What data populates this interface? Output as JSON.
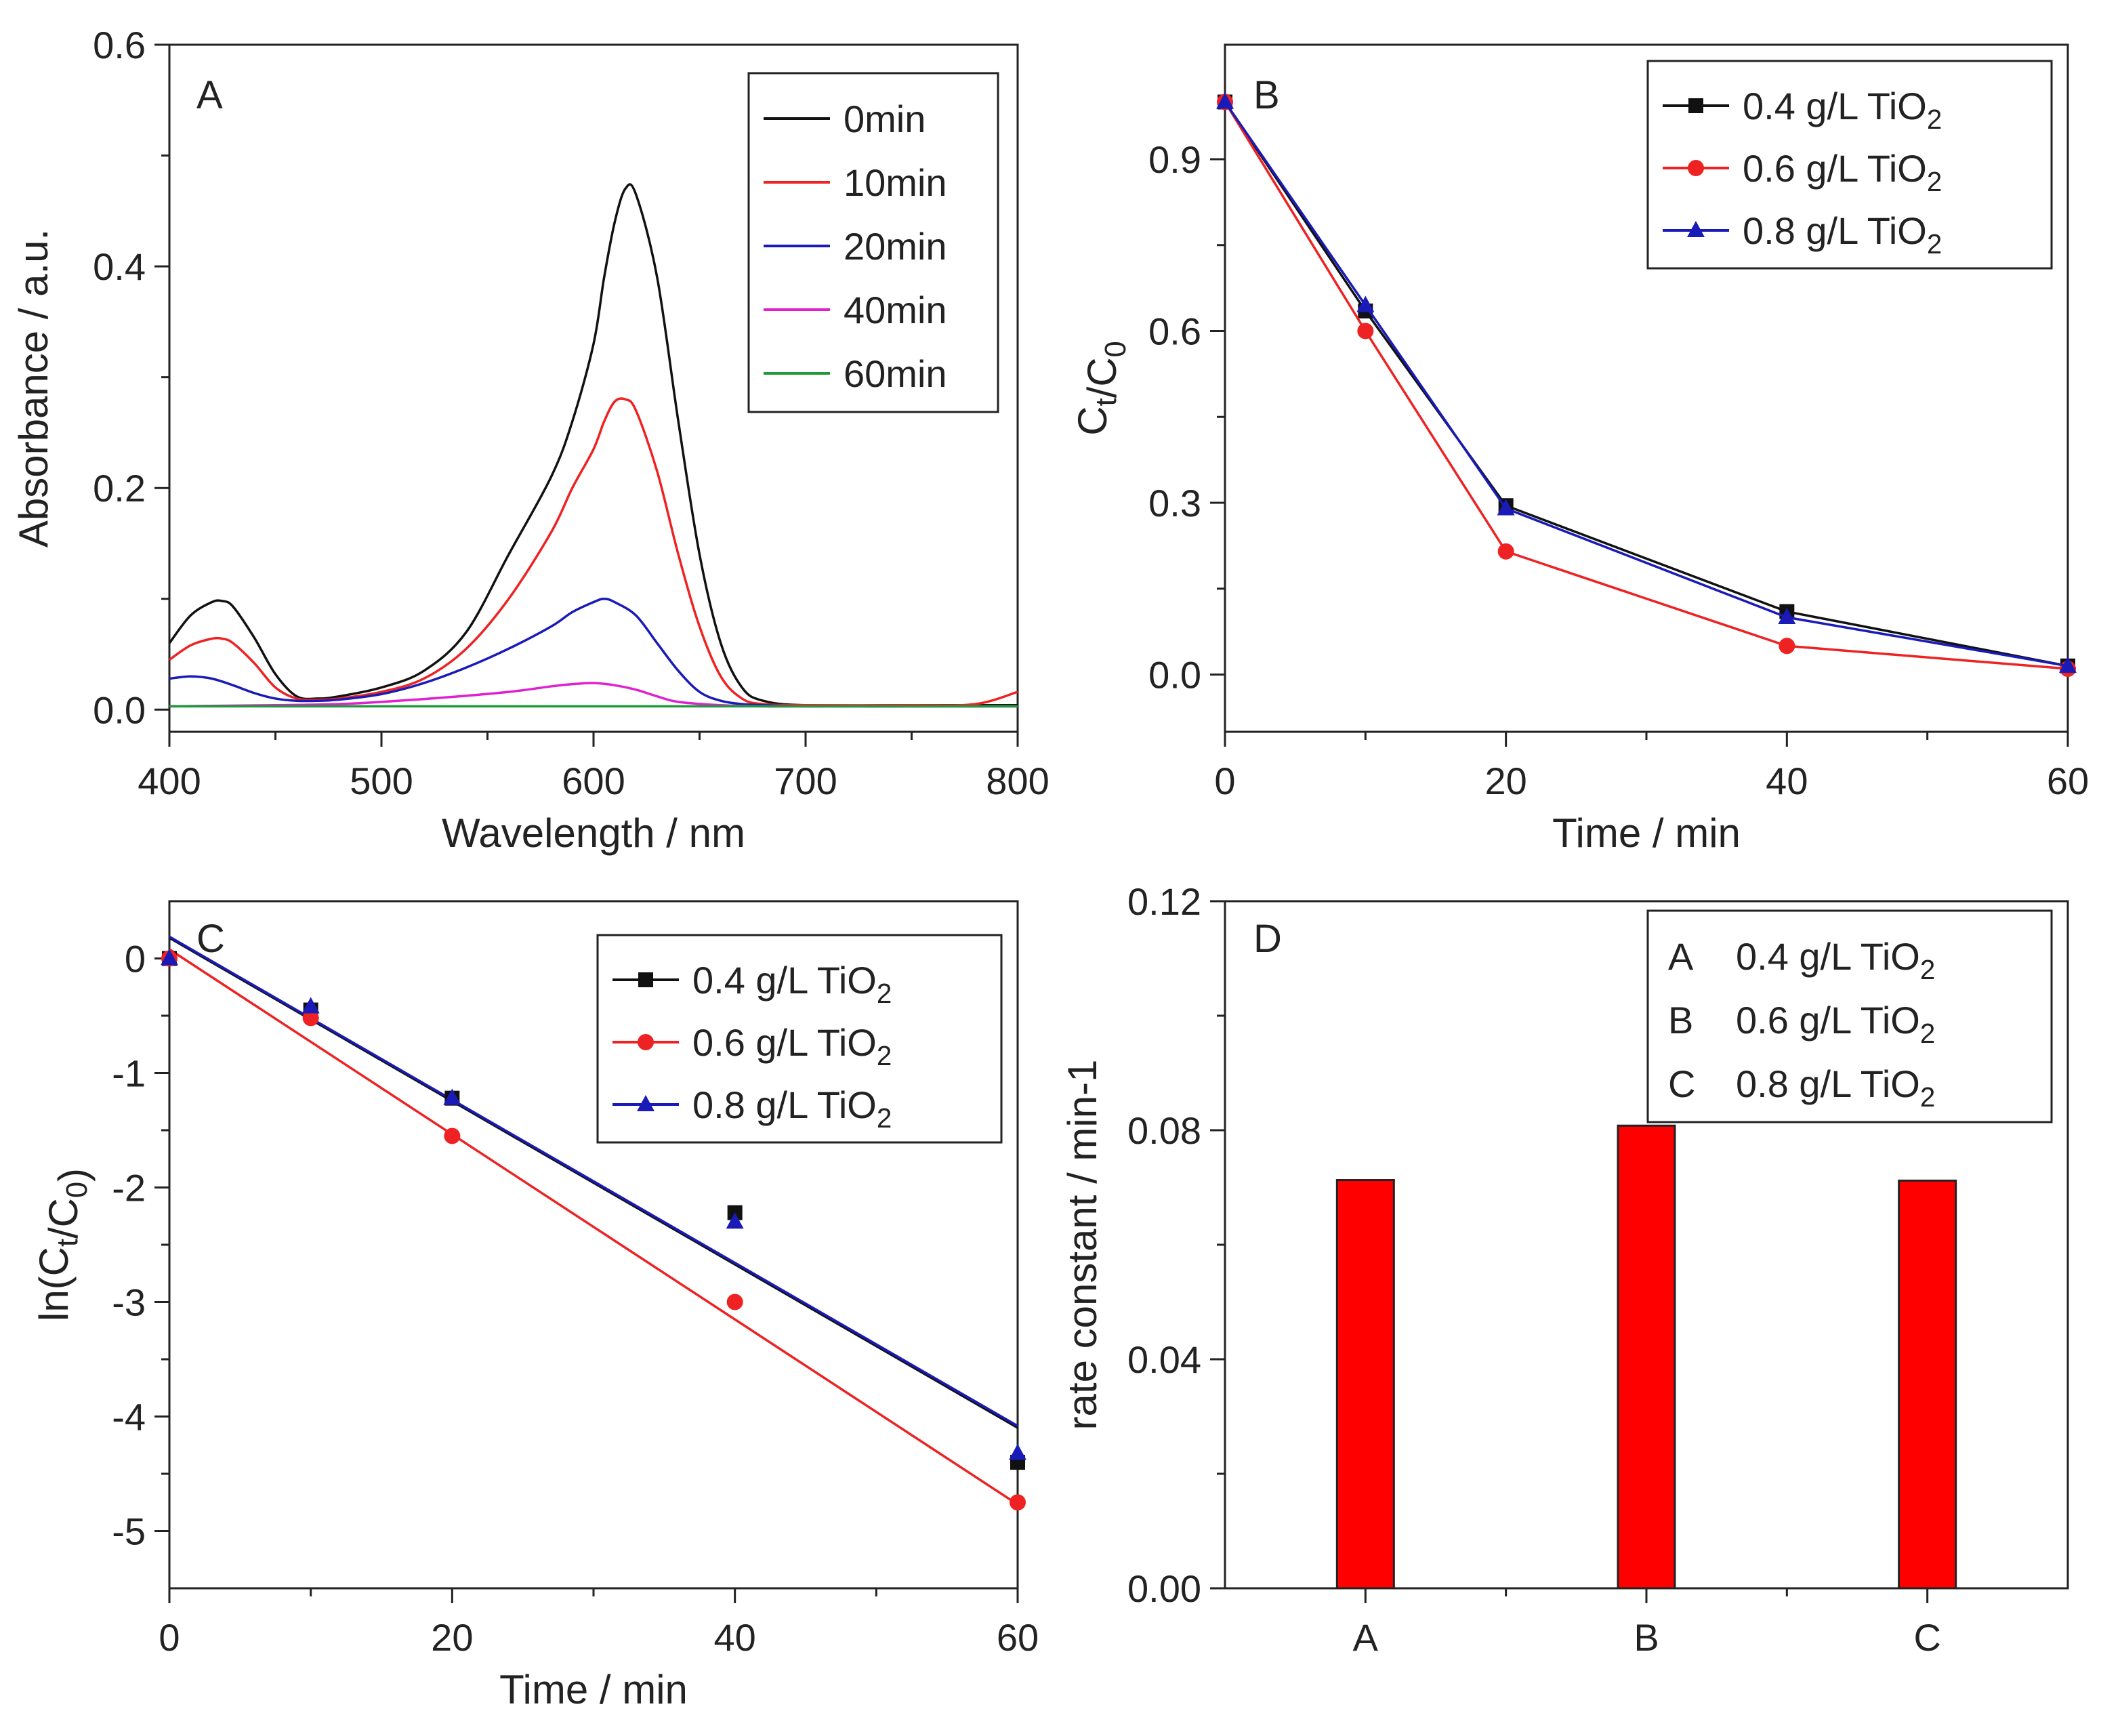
{
  "colors": {
    "black": "#111111",
    "red": "#ee2222",
    "blue": "#1a1ab8",
    "magenta": "#e020d0",
    "green": "#1f9a3a",
    "bar": "#ff0000"
  },
  "chart_data": [
    {
      "panel": "A",
      "type": "line",
      "title": "",
      "xlabel": "Wavelength / nm",
      "ylabel": "Absorbance / a.u.",
      "xlim": [
        400,
        800
      ],
      "ylim": [
        -0.02,
        0.6
      ],
      "xticks": [
        400,
        500,
        600,
        700,
        800
      ],
      "xtick_labels": [
        "400",
        "500",
        "600",
        "700",
        "800"
      ],
      "yticks": [
        0.0,
        0.2,
        0.4,
        0.6
      ],
      "ytick_labels": [
        "0.0",
        "0.2",
        "0.4",
        "0.6"
      ],
      "legend": "top-right",
      "series": [
        {
          "name": "0min",
          "color": "#111111",
          "x": [
            400,
            410,
            420,
            425,
            430,
            440,
            450,
            460,
            470,
            480,
            500,
            520,
            540,
            560,
            580,
            590,
            600,
            605,
            610,
            615,
            620,
            630,
            640,
            650,
            660,
            670,
            680,
            700,
            750,
            800
          ],
          "y": [
            0.06,
            0.085,
            0.097,
            0.098,
            0.093,
            0.065,
            0.032,
            0.012,
            0.01,
            0.012,
            0.02,
            0.035,
            0.07,
            0.14,
            0.21,
            0.26,
            0.33,
            0.39,
            0.44,
            0.47,
            0.465,
            0.39,
            0.26,
            0.14,
            0.06,
            0.02,
            0.008,
            0.004,
            0.004,
            0.004
          ]
        },
        {
          "name": "10min",
          "color": "#ee2222",
          "x": [
            400,
            410,
            420,
            425,
            430,
            440,
            450,
            460,
            470,
            480,
            500,
            520,
            540,
            560,
            580,
            590,
            600,
            605,
            610,
            615,
            620,
            630,
            640,
            650,
            660,
            670,
            680,
            700,
            750,
            780,
            800
          ],
          "y": [
            0.045,
            0.058,
            0.064,
            0.064,
            0.06,
            0.042,
            0.02,
            0.01,
            0.009,
            0.01,
            0.016,
            0.028,
            0.055,
            0.1,
            0.16,
            0.2,
            0.235,
            0.26,
            0.278,
            0.28,
            0.27,
            0.215,
            0.14,
            0.075,
            0.03,
            0.01,
            0.005,
            0.004,
            0.004,
            0.005,
            0.016
          ]
        },
        {
          "name": "20min",
          "color": "#1a1ab8",
          "x": [
            400,
            410,
            420,
            430,
            440,
            450,
            460,
            470,
            480,
            500,
            520,
            540,
            560,
            580,
            590,
            600,
            605,
            610,
            620,
            630,
            640,
            650,
            660,
            670,
            680,
            700,
            750,
            800
          ],
          "y": [
            0.028,
            0.03,
            0.028,
            0.022,
            0.015,
            0.01,
            0.008,
            0.008,
            0.009,
            0.014,
            0.024,
            0.038,
            0.055,
            0.075,
            0.088,
            0.097,
            0.1,
            0.097,
            0.085,
            0.06,
            0.035,
            0.016,
            0.008,
            0.005,
            0.004,
            0.003,
            0.003,
            0.003
          ]
        },
        {
          "name": "40min",
          "color": "#e020d0",
          "x": [
            400,
            450,
            480,
            500,
            530,
            560,
            580,
            590,
            600,
            610,
            620,
            630,
            640,
            660,
            680,
            700,
            800
          ],
          "y": [
            0.003,
            0.004,
            0.005,
            0.007,
            0.011,
            0.016,
            0.021,
            0.023,
            0.024,
            0.022,
            0.018,
            0.012,
            0.007,
            0.004,
            0.003,
            0.003,
            0.003
          ]
        },
        {
          "name": "60min",
          "color": "#1f9a3a",
          "x": [
            400,
            800
          ],
          "y": [
            0.003,
            0.003
          ]
        }
      ]
    },
    {
      "panel": "B",
      "type": "line",
      "title": "",
      "xlabel": "Time / min",
      "ylabel": "Ct/C0",
      "xlim": [
        0,
        60
      ],
      "ylim": [
        -0.1,
        1.1
      ],
      "xticks": [
        0,
        20,
        40,
        60
      ],
      "xtick_labels": [
        "0",
        "20",
        "40",
        "60"
      ],
      "yticks": [
        0.0,
        0.3,
        0.6,
        0.9
      ],
      "ytick_labels": [
        "0.0",
        "0.3",
        "0.6",
        "0.9"
      ],
      "legend": "top-right",
      "series": [
        {
          "name": "0.4 g/L TiO2",
          "color": "#111111",
          "marker": "square",
          "x": [
            0,
            10,
            20,
            40,
            60
          ],
          "y": [
            1.0,
            0.635,
            0.295,
            0.11,
            0.015
          ]
        },
        {
          "name": "0.6 g/L TiO2",
          "color": "#ee2222",
          "marker": "circle",
          "x": [
            0,
            10,
            20,
            40,
            60
          ],
          "y": [
            1.0,
            0.6,
            0.215,
            0.05,
            0.01
          ]
        },
        {
          "name": "0.8 g/L TiO2",
          "color": "#1a1ab8",
          "marker": "triangle",
          "x": [
            0,
            10,
            20,
            40,
            60
          ],
          "y": [
            1.0,
            0.645,
            0.29,
            0.1,
            0.015
          ]
        }
      ]
    },
    {
      "panel": "C",
      "type": "scatter",
      "title": "",
      "xlabel": "Time / min",
      "ylabel": "ln(Ct/C0)",
      "xlim": [
        0,
        60
      ],
      "ylim": [
        -5.5,
        0.5
      ],
      "xticks": [
        0,
        20,
        40,
        60
      ],
      "xtick_labels": [
        "0",
        "20",
        "40",
        "60"
      ],
      "yticks": [
        0,
        -1,
        -2,
        -3,
        -4,
        -5
      ],
      "ytick_labels": [
        "0",
        "-1",
        "-2",
        "-3",
        "-4",
        "-5"
      ],
      "legend": "top-right",
      "series": [
        {
          "name": "0.4 g/L TiO2",
          "color": "#111111",
          "marker": "square",
          "x": [
            0,
            10,
            20,
            40,
            60
          ],
          "y": [
            0,
            -0.45,
            -1.22,
            -2.22,
            -4.4
          ],
          "fit": [
            0.18,
            -0.0713
          ]
        },
        {
          "name": "0.6 g/L TiO2",
          "color": "#ee2222",
          "marker": "circle",
          "x": [
            0,
            10,
            20,
            40,
            60
          ],
          "y": [
            0,
            -0.52,
            -1.55,
            -3.0,
            -4.75
          ],
          "fit": [
            0.08,
            -0.0808
          ]
        },
        {
          "name": "0.8 g/L TiO2",
          "color": "#1a1ab8",
          "marker": "triangle",
          "x": [
            0,
            10,
            20,
            40,
            60
          ],
          "y": [
            0,
            -0.42,
            -1.22,
            -2.3,
            -4.32
          ],
          "fit": [
            0.19,
            -0.0712
          ]
        }
      ]
    },
    {
      "panel": "D",
      "type": "bar",
      "title": "",
      "xlabel": "",
      "ylabel": "rate constant / min-1",
      "categories": [
        "A",
        "B",
        "C"
      ],
      "values": [
        0.0713,
        0.0808,
        0.0712
      ],
      "ylim": [
        0,
        0.12
      ],
      "yticks": [
        0.0,
        0.04,
        0.08,
        0.12
      ],
      "ytick_labels": [
        "0.00",
        "0.04",
        "0.08",
        "0.12"
      ],
      "legend": "top-right",
      "legend_entries": [
        {
          "key": "A",
          "label": "0.4 g/L TiO2"
        },
        {
          "key": "B",
          "label": "0.6 g/L TiO2"
        },
        {
          "key": "C",
          "label": "0.8 g/L TiO2"
        }
      ]
    }
  ]
}
